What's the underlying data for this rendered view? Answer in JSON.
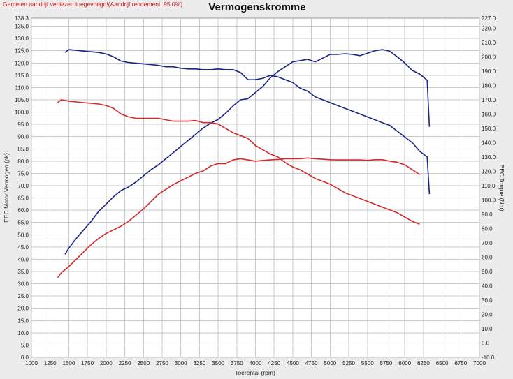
{
  "header": {
    "note": "Gemeten aandrijf verliezen toegevoegd!(Aandrijf rendement: 95.0%)",
    "title": "Vermogenskromme"
  },
  "colors": {
    "power_before": "#d42a2a",
    "power_after": "#1a2686",
    "torque_before": "#d42a2a",
    "torque_after": "#1a2686",
    "grid": "#c9c9c9",
    "plot_bg": "#ffffff"
  },
  "chart_data": {
    "type": "line",
    "title": "Vermogenskromme",
    "xlabel": "Toerental (rpm)",
    "ylabel": "EEC Motor Vermogen (pk)",
    "y2label": "EEC Torque (Nm)",
    "xlim": [
      1000,
      7000
    ],
    "ylim": [
      0,
      138.3
    ],
    "y2lim": [
      -10,
      227
    ],
    "grid": true,
    "x_ticks": [
      "1000",
      "1250",
      "1500",
      "1750",
      "2000",
      "2250",
      "2500",
      "2750",
      "3000",
      "3250",
      "3500",
      "3750",
      "4000",
      "4250",
      "4500",
      "4750",
      "5000",
      "5250",
      "5500",
      "5750",
      "6000",
      "6250",
      "6500",
      "6750",
      "7000"
    ],
    "y_ticks": [
      "0.0",
      "5.0",
      "10.0",
      "15.0",
      "20.0",
      "25.0",
      "30.0",
      "35.0",
      "40.0",
      "45.0",
      "50.0",
      "55.0",
      "60.0",
      "65.0",
      "70.0",
      "75.0",
      "80.0",
      "85.0",
      "90.0",
      "95.0",
      "100.0",
      "105.0",
      "110.0",
      "115.0",
      "120.0",
      "125.0",
      "130.0",
      "135.0"
    ],
    "y_top_label": "138.3",
    "y2_ticks": [
      "-10.0",
      "0.0",
      "10.0",
      "20.0",
      "30.0",
      "40.0",
      "50.0",
      "60.0",
      "70.0",
      "80.0",
      "90.0",
      "100.0",
      "110.0",
      "120.0",
      "130.0",
      "140.0",
      "150.0",
      "160.0",
      "170.0",
      "180.0",
      "190.0",
      "200.0",
      "210.0",
      "220.0"
    ],
    "y2_top_label": "227.0",
    "series": [
      {
        "axis": "left",
        "color": "#d42a2a",
        "x": [
          1350,
          1400,
          1500,
          1600,
          1700,
          1800,
          1900,
          2000,
          2100,
          2200,
          2300,
          2400,
          2500,
          2600,
          2700,
          2800,
          2900,
          3000,
          3100,
          3200,
          3300,
          3400,
          3500,
          3600,
          3700,
          3800,
          3900,
          4000,
          4100,
          4200,
          4300,
          4400,
          4500,
          4600,
          4700,
          4800,
          4900,
          5000,
          5100,
          5200,
          5300,
          5400,
          5500,
          5600,
          5700,
          5800,
          5900,
          6000,
          6100,
          6200
        ],
        "y": [
          32.5,
          34.5,
          37.0,
          40.0,
          43.0,
          46.0,
          48.5,
          50.5,
          52.0,
          53.5,
          55.5,
          58.0,
          60.5,
          63.5,
          66.5,
          68.5,
          70.5,
          72.0,
          73.5,
          75.0,
          76.0,
          78.0,
          79.0,
          79.0,
          80.5,
          81.0,
          80.5,
          80.0,
          80.3,
          80.5,
          80.7,
          81.0,
          81.0,
          81.0,
          81.3,
          81.0,
          80.8,
          80.6,
          80.5,
          80.5,
          80.5,
          80.5,
          80.3,
          80.6,
          80.6,
          80.0,
          79.5,
          78.5,
          76.5,
          74.5
        ]
      },
      {
        "axis": "left",
        "color": "#1a2686",
        "x": [
          1450,
          1500,
          1600,
          1700,
          1800,
          1900,
          2000,
          2100,
          2200,
          2300,
          2400,
          2500,
          2600,
          2700,
          2800,
          2900,
          3000,
          3100,
          3200,
          3300,
          3400,
          3500,
          3600,
          3700,
          3800,
          3900,
          4000,
          4100,
          4200,
          4300,
          4400,
          4500,
          4600,
          4700,
          4800,
          4900,
          5000,
          5100,
          5200,
          5300,
          5400,
          5500,
          5600,
          5700,
          5800,
          5900,
          6000,
          6100,
          6200,
          6300,
          6330
        ],
        "y": [
          42.0,
          44.5,
          48.5,
          52.0,
          55.5,
          59.5,
          62.5,
          65.5,
          68.0,
          69.5,
          71.5,
          74.0,
          76.5,
          78.5,
          81.0,
          83.5,
          86.0,
          88.5,
          91.0,
          93.5,
          95.5,
          97.0,
          99.5,
          102.5,
          105.0,
          105.5,
          108.0,
          110.5,
          114.0,
          116.5,
          118.5,
          120.5,
          121.0,
          121.5,
          120.5,
          122.0,
          123.5,
          123.5,
          123.8,
          123.5,
          123.0,
          124.0,
          125.0,
          125.5,
          124.8,
          122.5,
          120.0,
          117.0,
          115.5,
          113.0,
          94.0
        ]
      },
      {
        "axis": "right",
        "color": "#d42a2a",
        "x": [
          1350,
          1400,
          1500,
          1600,
          1700,
          1800,
          1900,
          2000,
          2100,
          2200,
          2300,
          2400,
          2500,
          2600,
          2700,
          2800,
          2900,
          3000,
          3100,
          3200,
          3300,
          3400,
          3500,
          3600,
          3700,
          3800,
          3900,
          4000,
          4100,
          4200,
          4300,
          4400,
          4500,
          4600,
          4700,
          4800,
          4900,
          5000,
          5100,
          5200,
          5300,
          5400,
          5500,
          5600,
          5700,
          5800,
          5900,
          6000,
          6100,
          6200
        ],
        "y": [
          168,
          170,
          169,
          168.5,
          168,
          167.5,
          167,
          166,
          164,
          160,
          158,
          157,
          157,
          157,
          157,
          156,
          155,
          155,
          155,
          155.5,
          154,
          154,
          153,
          150,
          147,
          145,
          143,
          138,
          135,
          132,
          130,
          126,
          123,
          121,
          118,
          115,
          113,
          111,
          108,
          105,
          103,
          101,
          99,
          97,
          95,
          93,
          91,
          88,
          85,
          83
        ]
      },
      {
        "axis": "right",
        "color": "#1a2686",
        "x": [
          1450,
          1500,
          1600,
          1700,
          1800,
          1900,
          2000,
          2100,
          2200,
          2300,
          2400,
          2500,
          2600,
          2700,
          2800,
          2900,
          3000,
          3100,
          3200,
          3300,
          3400,
          3500,
          3600,
          3700,
          3800,
          3900,
          4000,
          4100,
          4200,
          4300,
          4400,
          4500,
          4600,
          4700,
          4800,
          4900,
          5000,
          5100,
          5200,
          5300,
          5400,
          5500,
          5600,
          5700,
          5800,
          5900,
          6000,
          6100,
          6200,
          6300,
          6330
        ],
        "y": [
          203,
          205,
          204.5,
          204,
          203.5,
          203,
          202,
          200,
          197,
          196,
          195.5,
          195,
          194.5,
          194,
          193,
          193,
          192,
          191.5,
          191.5,
          191,
          191,
          191.5,
          191,
          191,
          189,
          184,
          184,
          185,
          187,
          186,
          184,
          182,
          178,
          176,
          172,
          170,
          168,
          166,
          164,
          162,
          160,
          158,
          156,
          154,
          152,
          148,
          144,
          140,
          134,
          130,
          104
        ]
      }
    ]
  }
}
